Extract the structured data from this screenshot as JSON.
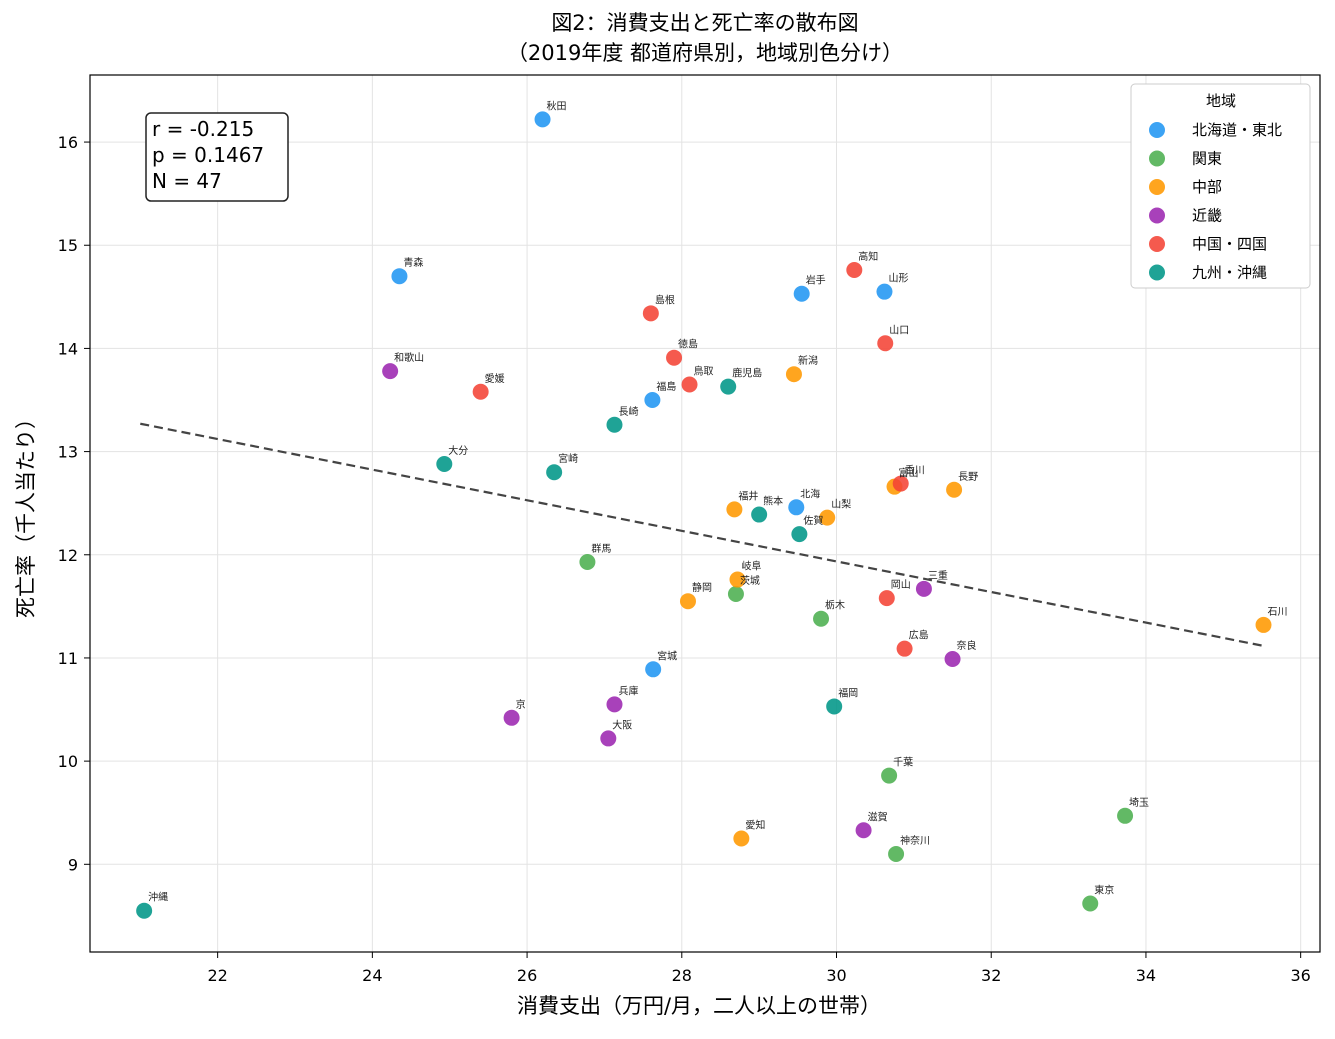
{
  "chart_data": {
    "type": "scatter",
    "title": "図2：消費支出と死亡率の散布図",
    "subtitle": "（2019年度 都道府県別，地域別色分け）",
    "xlabel": "消費支出（万円/月，二人以上の世帯）",
    "ylabel": "死亡率（千人当たり）",
    "xlim": [
      20.35,
      36.25
    ],
    "ylim": [
      8.15,
      16.65
    ],
    "xticks": [
      "22",
      "24",
      "26",
      "28",
      "30",
      "32",
      "34",
      "36"
    ],
    "yticks": [
      "9",
      "10",
      "11",
      "12",
      "13",
      "14",
      "15",
      "16"
    ],
    "grid": true,
    "stats": {
      "r": "r = -0.215",
      "p": "p = 0.1467",
      "n": "N = 47"
    },
    "trendline": {
      "x": [
        21.0,
        35.5
      ],
      "y": [
        13.27,
        11.12
      ]
    },
    "legend": {
      "title": "地域",
      "placement": "top-right"
    },
    "series": [
      {
        "name": "北海道・東北",
        "color": "#2196F3",
        "points": [
          {
            "label": "秋田",
            "x": 26.2,
            "y": 16.22
          },
          {
            "label": "青森",
            "x": 24.35,
            "y": 14.7
          },
          {
            "label": "岩手",
            "x": 29.55,
            "y": 14.53
          },
          {
            "label": "山形",
            "x": 30.62,
            "y": 14.55
          },
          {
            "label": "福島",
            "x": 27.62,
            "y": 13.5
          },
          {
            "label": "北海",
            "x": 29.48,
            "y": 12.46
          },
          {
            "label": "宮城",
            "x": 27.63,
            "y": 10.89
          }
        ]
      },
      {
        "name": "関東",
        "color": "#4CAF50",
        "points": [
          {
            "label": "群馬",
            "x": 26.78,
            "y": 11.93
          },
          {
            "label": "茨城",
            "x": 28.7,
            "y": 11.62
          },
          {
            "label": "栃木",
            "x": 29.8,
            "y": 11.38
          },
          {
            "label": "千葉",
            "x": 30.68,
            "y": 9.86
          },
          {
            "label": "神奈川",
            "x": 30.77,
            "y": 9.1
          },
          {
            "label": "埼玉",
            "x": 33.73,
            "y": 9.47
          },
          {
            "label": "東京",
            "x": 33.28,
            "y": 8.62
          }
        ]
      },
      {
        "name": "中部",
        "color": "#FF9800",
        "points": [
          {
            "label": "新潟",
            "x": 29.45,
            "y": 13.75
          },
          {
            "label": "富山",
            "x": 30.75,
            "y": 12.66
          },
          {
            "label": "長野",
            "x": 31.52,
            "y": 12.63
          },
          {
            "label": "福井",
            "x": 28.68,
            "y": 12.44
          },
          {
            "label": "山梨",
            "x": 29.88,
            "y": 12.36
          },
          {
            "label": "岐阜",
            "x": 28.72,
            "y": 11.76
          },
          {
            "label": "静岡",
            "x": 28.08,
            "y": 11.55
          },
          {
            "label": "石川",
            "x": 35.52,
            "y": 11.32
          },
          {
            "label": "愛知",
            "x": 28.77,
            "y": 9.25
          }
        ]
      },
      {
        "name": "近畿",
        "color": "#9C27B0",
        "points": [
          {
            "label": "和歌山",
            "x": 24.23,
            "y": 13.78
          },
          {
            "label": "三重",
            "x": 31.13,
            "y": 11.67
          },
          {
            "label": "奈良",
            "x": 31.5,
            "y": 10.99
          },
          {
            "label": "兵庫",
            "x": 27.13,
            "y": 10.55
          },
          {
            "label": "京",
            "x": 25.8,
            "y": 10.42
          },
          {
            "label": "大阪",
            "x": 27.05,
            "y": 10.22
          },
          {
            "label": "滋賀",
            "x": 30.35,
            "y": 9.33
          }
        ]
      },
      {
        "name": "中国・四国",
        "color": "#F44336",
        "points": [
          {
            "label": "高知",
            "x": 30.23,
            "y": 14.76
          },
          {
            "label": "島根",
            "x": 27.6,
            "y": 14.34
          },
          {
            "label": "山口",
            "x": 30.63,
            "y": 14.05
          },
          {
            "label": "徳島",
            "x": 27.9,
            "y": 13.91
          },
          {
            "label": "鳥取",
            "x": 28.1,
            "y": 13.65
          },
          {
            "label": "愛媛",
            "x": 25.4,
            "y": 13.58
          },
          {
            "label": "香川",
            "x": 30.83,
            "y": 12.69
          },
          {
            "label": "岡山",
            "x": 30.65,
            "y": 11.58
          },
          {
            "label": "広島",
            "x": 30.88,
            "y": 11.09
          }
        ]
      },
      {
        "name": "九州・沖縄",
        "color": "#009688",
        "points": [
          {
            "label": "鹿児島",
            "x": 28.6,
            "y": 13.63
          },
          {
            "label": "長崎",
            "x": 27.13,
            "y": 13.26
          },
          {
            "label": "大分",
            "x": 24.93,
            "y": 12.88
          },
          {
            "label": "宮崎",
            "x": 26.35,
            "y": 12.8
          },
          {
            "label": "熊本",
            "x": 29.0,
            "y": 12.39
          },
          {
            "label": "佐賀",
            "x": 29.52,
            "y": 12.2
          },
          {
            "label": "福岡",
            "x": 29.97,
            "y": 10.53
          },
          {
            "label": "沖縄",
            "x": 21.05,
            "y": 8.55
          }
        ]
      }
    ]
  }
}
